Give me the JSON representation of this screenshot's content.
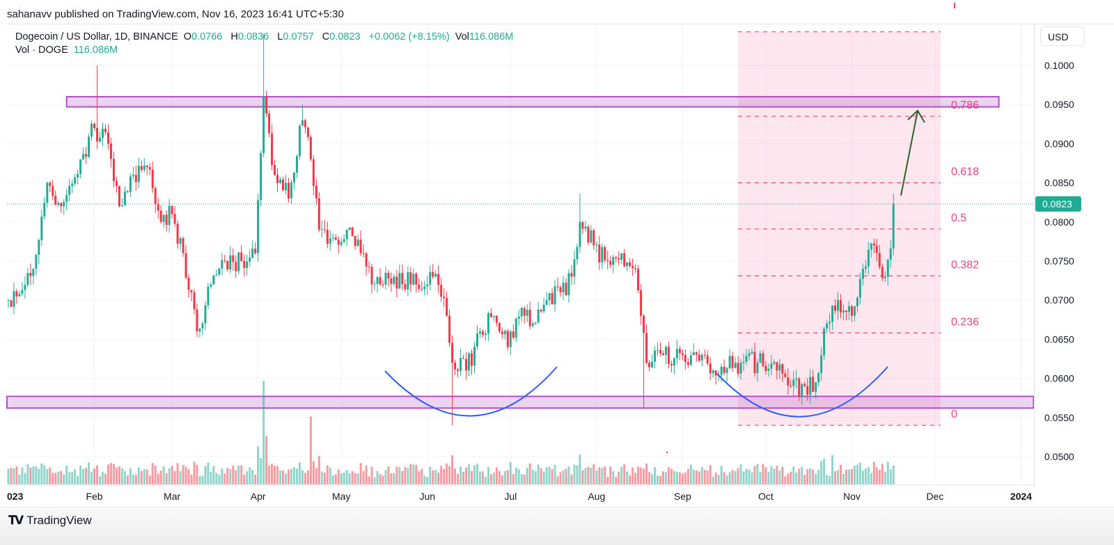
{
  "publish_line": "sahanavv published on TradingView.com, Nov 16, 2023 16:41 UTC+5:30",
  "legend": {
    "symbol": "Dogecoin / US Dollar, 1D, BINANCE",
    "o_label": "O",
    "o": "0.0766",
    "h_label": "H",
    "h": "0.0836",
    "l_label": "L",
    "l": "0.0757",
    "c_label": "C",
    "c": "0.0823",
    "change": "+0.0062 (+8.15%)",
    "vol_label": "Vol",
    "vol": "116.086M",
    "vol_series_label": "Vol · DOGE",
    "vol_series_value": "116.086M"
  },
  "currency": "USD",
  "footer": {
    "brand": "TradingView"
  },
  "colors": {
    "up": "#22ab94",
    "down": "#f23645",
    "fib": "#f23f7a",
    "zone": "#b04fc7",
    "arc": "#2f5cff",
    "arrow": "#2e5e2b"
  },
  "chart_data": {
    "type": "candlestick",
    "title": "Dogecoin / US Dollar, 1D, BINANCE",
    "ylim": [
      0.046,
      0.106
    ],
    "yticks": [
      "0.1000",
      "0.0950",
      "0.0900",
      "0.0850",
      "0.0800",
      "0.0750",
      "0.0700",
      "0.0650",
      "0.0600",
      "0.0550",
      "0.0500"
    ],
    "xticks": [
      {
        "label": "023",
        "day": 0
      },
      {
        "label": "Feb",
        "day": 31
      },
      {
        "label": "Mar",
        "day": 59
      },
      {
        "label": "Apr",
        "day": 90
      },
      {
        "label": "May",
        "day": 120
      },
      {
        "label": "Jun",
        "day": 151
      },
      {
        "label": "Jul",
        "day": 181
      },
      {
        "label": "Aug",
        "day": 212
      },
      {
        "label": "Sep",
        "day": 243
      },
      {
        "label": "Oct",
        "day": 273
      },
      {
        "label": "Nov",
        "day": 304
      },
      {
        "label": "Dec",
        "day": 334
      },
      {
        "label": "2024",
        "day": 365
      }
    ],
    "close_keypoints_day_price": [
      [
        0,
        0.07
      ],
      [
        9,
        0.074
      ],
      [
        14,
        0.085
      ],
      [
        19,
        0.082
      ],
      [
        26,
        0.088
      ],
      [
        31,
        0.092
      ],
      [
        36,
        0.09
      ],
      [
        40,
        0.082
      ],
      [
        45,
        0.086
      ],
      [
        50,
        0.087
      ],
      [
        55,
        0.08
      ],
      [
        59,
        0.081
      ],
      [
        63,
        0.076
      ],
      [
        68,
        0.066
      ],
      [
        73,
        0.072
      ],
      [
        78,
        0.075
      ],
      [
        84,
        0.075
      ],
      [
        89,
        0.076
      ],
      [
        92,
        0.096
      ],
      [
        96,
        0.086
      ],
      [
        101,
        0.083
      ],
      [
        106,
        0.093
      ],
      [
        109,
        0.088
      ],
      [
        112,
        0.079
      ],
      [
        117,
        0.078
      ],
      [
        122,
        0.079
      ],
      [
        127,
        0.076
      ],
      [
        131,
        0.072
      ],
      [
        139,
        0.073
      ],
      [
        147,
        0.072
      ],
      [
        153,
        0.073
      ],
      [
        158,
        0.068
      ],
      [
        160,
        0.062
      ],
      [
        165,
        0.061
      ],
      [
        170,
        0.066
      ],
      [
        175,
        0.068
      ],
      [
        180,
        0.064
      ],
      [
        185,
        0.069
      ],
      [
        189,
        0.067
      ],
      [
        194,
        0.07
      ],
      [
        199,
        0.071
      ],
      [
        203,
        0.073
      ],
      [
        206,
        0.08
      ],
      [
        211,
        0.077
      ],
      [
        216,
        0.075
      ],
      [
        221,
        0.076
      ],
      [
        226,
        0.074
      ],
      [
        228,
        0.068
      ],
      [
        230,
        0.062
      ],
      [
        236,
        0.063
      ],
      [
        243,
        0.063
      ],
      [
        250,
        0.063
      ],
      [
        254,
        0.061
      ],
      [
        262,
        0.062
      ],
      [
        270,
        0.062
      ],
      [
        277,
        0.061
      ],
      [
        282,
        0.059
      ],
      [
        287,
        0.059
      ],
      [
        291,
        0.0595
      ],
      [
        295,
        0.067
      ],
      [
        299,
        0.07
      ],
      [
        304,
        0.068
      ],
      [
        308,
        0.074
      ],
      [
        312,
        0.077
      ],
      [
        316,
        0.073
      ],
      [
        318,
        0.0766
      ],
      [
        319,
        0.0823
      ]
    ],
    "extreme_wicks_day_high_low": [
      [
        32,
        0.1,
        null
      ],
      [
        92,
        0.104,
        null
      ],
      [
        106,
        0.095,
        null
      ],
      [
        160,
        null,
        0.054
      ],
      [
        206,
        0.0836,
        null
      ],
      [
        229,
        null,
        0.0562
      ],
      [
        319,
        0.0836,
        0.0757
      ]
    ],
    "last_candle": {
      "open": 0.0766,
      "high": 0.0836,
      "low": 0.0757,
      "close": 0.0823
    },
    "current_price": "0.0823",
    "volume_spikes_day_millions": [
      [
        92,
        640
      ],
      [
        93,
        300
      ],
      [
        109,
        420
      ],
      [
        160,
        180
      ],
      [
        206,
        185
      ],
      [
        297,
        180
      ],
      [
        312,
        140
      ],
      [
        319,
        116.086
      ]
    ],
    "zones": [
      {
        "name": "resistance",
        "low": 0.0947,
        "high": 0.096,
        "from_day": 21,
        "to_day": 357
      },
      {
        "name": "support",
        "low": 0.0562,
        "high": 0.0577,
        "from_day": 0,
        "to_day": 370
      }
    ],
    "fibonacci": {
      "from_day": 263,
      "to_day": 336,
      "levels": [
        {
          "label": "0",
          "price": 0.054
        },
        {
          "label": "0.236",
          "price": 0.0658
        },
        {
          "label": "0.382",
          "price": 0.0731
        },
        {
          "label": "0.5",
          "price": 0.0791
        },
        {
          "label": "0.618",
          "price": 0.085
        },
        {
          "label": "0.786",
          "price": 0.0935
        },
        {
          "label": "",
          "price": 0.1043
        }
      ]
    }
  }
}
